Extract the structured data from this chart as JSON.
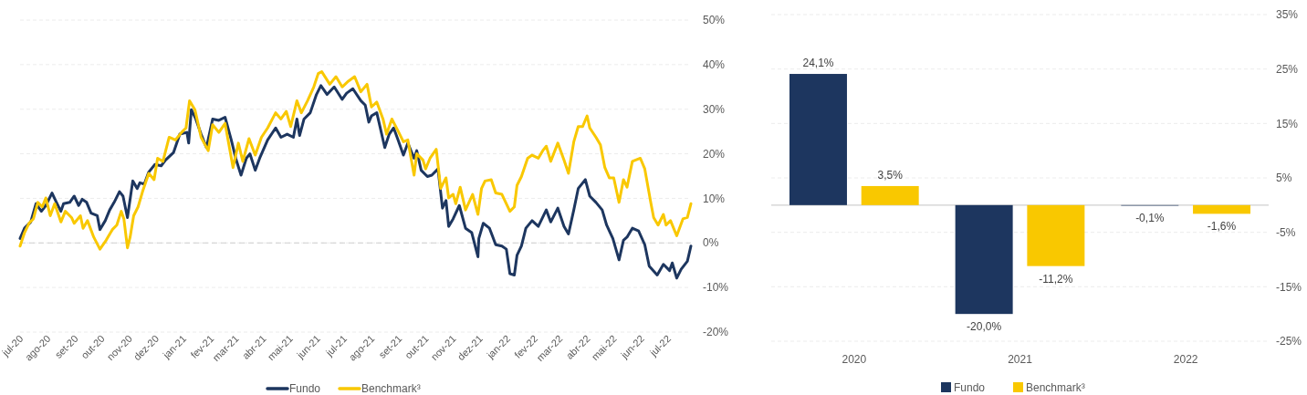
{
  "chart_data": [
    {
      "type": "line",
      "xlim": [
        "2020-07-01",
        "2022-07-27"
      ],
      "xticks": [
        {
          "value": "2020-07-01",
          "label": "jul-20"
        },
        {
          "value": "2020-08-01",
          "label": "ago-20"
        },
        {
          "value": "2020-09-01",
          "label": "set-20"
        },
        {
          "value": "2020-10-01",
          "label": "out-20"
        },
        {
          "value": "2020-11-01",
          "label": "nov-20"
        },
        {
          "value": "2020-12-01",
          "label": "dez-20"
        },
        {
          "value": "2021-01-01",
          "label": "jan-21"
        },
        {
          "value": "2021-02-01",
          "label": "fev-21"
        },
        {
          "value": "2021-03-01",
          "label": "mar-21"
        },
        {
          "value": "2021-04-01",
          "label": "abr-21"
        },
        {
          "value": "2021-05-01",
          "label": "mai-21"
        },
        {
          "value": "2021-06-01",
          "label": "jun-21"
        },
        {
          "value": "2021-07-01",
          "label": "jul-21"
        },
        {
          "value": "2021-08-01",
          "label": "ago-21"
        },
        {
          "value": "2021-09-01",
          "label": "set-21"
        },
        {
          "value": "2021-10-01",
          "label": "out-21"
        },
        {
          "value": "2021-11-01",
          "label": "nov-21"
        },
        {
          "value": "2021-12-01",
          "label": "dez-21"
        },
        {
          "value": "2022-01-01",
          "label": "jan-22"
        },
        {
          "value": "2022-02-01",
          "label": "fev-22"
        },
        {
          "value": "2022-03-01",
          "label": "mar-22"
        },
        {
          "value": "2022-04-01",
          "label": "abr-22"
        },
        {
          "value": "2022-05-01",
          "label": "mai-22"
        },
        {
          "value": "2022-06-01",
          "label": "jun-22"
        },
        {
          "value": "2022-07-01",
          "label": "jul-22"
        }
      ],
      "ylim": [
        -20,
        50
      ],
      "yticks": [
        {
          "value": -20,
          "label": "-20%"
        },
        {
          "value": -10,
          "label": "-10%"
        },
        {
          "value": 0,
          "label": "0%"
        },
        {
          "value": 10,
          "label": "10%"
        },
        {
          "value": 20,
          "label": "20%"
        },
        {
          "value": 30,
          "label": "30%"
        },
        {
          "value": 40,
          "label": "40%"
        },
        {
          "value": 50,
          "label": "50%"
        }
      ],
      "grid": "y",
      "legend": "bottom",
      "line_style": "solid",
      "ref_lines": [
        {
          "axis": "y",
          "value": 0,
          "color": "#cfcfcf",
          "line_style": "dashed"
        }
      ],
      "series": [
        {
          "name": "Fundo",
          "color": "#1d365f",
          "x": [
            "2020-07-01",
            "2020-07-06",
            "2020-07-13",
            "2020-07-19",
            "2020-07-25",
            "2020-07-30",
            "2020-08-06",
            "2020-08-11",
            "2020-08-16",
            "2020-08-19",
            "2020-08-26",
            "2020-08-31",
            "2020-09-05",
            "2020-09-09",
            "2020-09-14",
            "2020-09-19",
            "2020-09-26",
            "2020-09-29",
            "2020-10-05",
            "2020-10-10",
            "2020-10-15",
            "2020-10-21",
            "2020-10-25",
            "2020-10-30",
            "2020-11-05",
            "2020-11-10",
            "2020-11-13",
            "2020-11-18",
            "2020-11-23",
            "2020-11-30",
            "2020-12-07",
            "2020-12-12",
            "2020-12-21",
            "2020-12-28",
            "2021-01-05",
            "2021-01-07",
            "2021-01-10",
            "2021-01-15",
            "2021-01-21",
            "2021-01-27",
            "2021-02-03",
            "2021-02-10",
            "2021-02-17",
            "2021-02-24",
            "2021-03-01",
            "2021-03-07",
            "2021-03-13",
            "2021-03-17",
            "2021-03-23",
            "2021-03-28",
            "2021-04-06",
            "2021-04-15",
            "2021-04-21",
            "2021-04-28",
            "2021-05-05",
            "2021-05-09",
            "2021-05-12",
            "2021-05-17",
            "2021-05-24",
            "2021-05-31",
            "2021-06-05",
            "2021-06-12",
            "2021-06-20",
            "2021-06-29",
            "2021-07-04",
            "2021-07-11",
            "2021-07-20",
            "2021-07-25",
            "2021-07-29",
            "2021-08-01",
            "2021-08-07",
            "2021-08-16",
            "2021-08-21",
            "2021-08-26",
            "2021-08-31",
            "2021-09-06",
            "2021-09-11",
            "2021-09-18",
            "2021-09-21",
            "2021-09-26",
            "2021-10-03",
            "2021-10-08",
            "2021-10-15",
            "2021-10-20",
            "2021-10-24",
            "2021-10-27",
            "2021-11-01",
            "2021-11-08",
            "2021-11-15",
            "2021-11-22",
            "2021-11-29",
            "2021-11-30",
            "2021-12-05",
            "2021-12-12",
            "2021-12-19",
            "2021-12-26",
            "2021-12-31",
            "2022-01-04",
            "2022-01-09",
            "2022-01-12",
            "2022-01-17",
            "2022-01-22",
            "2022-01-29",
            "2022-02-05",
            "2022-02-14",
            "2022-02-19",
            "2022-02-27",
            "2022-03-06",
            "2022-03-11",
            "2022-03-17",
            "2022-03-22",
            "2022-03-30",
            "2022-04-04",
            "2022-04-11",
            "2022-04-18",
            "2022-04-23",
            "2022-04-30",
            "2022-05-07",
            "2022-05-12",
            "2022-05-16",
            "2022-05-22",
            "2022-05-29",
            "2022-06-05",
            "2022-06-10",
            "2022-06-19",
            "2022-06-26",
            "2022-07-03",
            "2022-07-06",
            "2022-07-11",
            "2022-07-16",
            "2022-07-23",
            "2022-07-27"
          ],
          "values": [
            1.0,
            3.3,
            4.7,
            8.8,
            7.1,
            8.4,
            11.2,
            9.1,
            7.1,
            8.8,
            9.1,
            10.5,
            8.4,
            9.8,
            9.1,
            6.7,
            6.1,
            3.0,
            5.0,
            7.4,
            9.1,
            11.5,
            10.5,
            5.7,
            13.9,
            12.2,
            13.5,
            13.2,
            15.9,
            17.6,
            17.3,
            18.6,
            20.3,
            24.4,
            24.8,
            22.4,
            29.9,
            27.8,
            24.4,
            21.4,
            27.8,
            27.5,
            28.2,
            23.1,
            19.0,
            15.2,
            19.0,
            20.0,
            16.3,
            19.0,
            23.1,
            25.8,
            23.7,
            24.4,
            23.7,
            27.8,
            24.1,
            27.8,
            29.2,
            33.3,
            35.3,
            33.3,
            35.0,
            32.2,
            33.6,
            34.6,
            31.9,
            30.9,
            27.1,
            28.5,
            29.2,
            21.4,
            24.4,
            25.8,
            23.1,
            19.7,
            22.4,
            19.0,
            20.7,
            16.3,
            14.9,
            15.2,
            16.6,
            7.8,
            9.5,
            3.7,
            5.4,
            8.4,
            3.3,
            2.3,
            -3.1,
            1.0,
            4.4,
            3.3,
            -0.4,
            -0.7,
            -1.4,
            -6.9,
            -7.2,
            -2.8,
            -0.7,
            3.3,
            5.0,
            3.7,
            7.4,
            4.7,
            7.8,
            3.7,
            2.0,
            7.4,
            12.2,
            14.2,
            10.5,
            9.1,
            7.4,
            4.0,
            1.0,
            -3.8,
            0.6,
            1.3,
            3.3,
            2.7,
            -0.4,
            -5.2,
            -7.2,
            -4.8,
            -6.2,
            -4.5,
            -7.9,
            -5.9,
            -4.1,
            -0.7
          ]
        },
        {
          "name": "Benchmark³",
          "color": "#f9c800",
          "x": [
            "2020-07-01",
            "2020-07-06",
            "2020-07-11",
            "2020-07-16",
            "2020-07-21",
            "2020-07-26",
            "2020-07-30",
            "2020-08-04",
            "2020-08-09",
            "2020-08-16",
            "2020-08-21",
            "2020-08-28",
            "2020-08-31",
            "2020-09-07",
            "2020-09-10",
            "2020-09-15",
            "2020-09-22",
            "2020-09-29",
            "2020-10-06",
            "2020-10-13",
            "2020-10-18",
            "2020-10-23",
            "2020-10-26",
            "2020-10-30",
            "2020-11-02",
            "2020-11-06",
            "2020-11-11",
            "2020-11-16",
            "2020-11-23",
            "2020-11-29",
            "2020-12-03",
            "2020-12-09",
            "2020-12-16",
            "2020-12-23",
            "2020-12-30",
            "2021-01-04",
            "2021-01-08",
            "2021-01-14",
            "2021-01-21",
            "2021-01-29",
            "2021-02-03",
            "2021-02-10",
            "2021-02-17",
            "2021-02-26",
            "2021-03-04",
            "2021-03-09",
            "2021-03-16",
            "2021-03-23",
            "2021-03-30",
            "2021-04-06",
            "2021-04-15",
            "2021-04-21",
            "2021-04-27",
            "2021-05-02",
            "2021-05-09",
            "2021-05-14",
            "2021-05-21",
            "2021-05-28",
            "2021-06-02",
            "2021-06-06",
            "2021-06-15",
            "2021-06-22",
            "2021-06-29",
            "2021-07-06",
            "2021-07-13",
            "2021-07-20",
            "2021-07-27",
            "2021-08-01",
            "2021-08-07",
            "2021-08-14",
            "2021-08-18",
            "2021-08-24",
            "2021-08-31",
            "2021-09-06",
            "2021-09-11",
            "2021-09-18",
            "2021-09-21",
            "2021-09-28",
            "2021-10-01",
            "2021-10-06",
            "2021-10-13",
            "2021-10-18",
            "2021-10-24",
            "2021-10-27",
            "2021-11-01",
            "2021-11-04",
            "2021-11-09",
            "2021-11-15",
            "2021-11-23",
            "2021-11-29",
            "2021-12-03",
            "2021-12-07",
            "2021-12-14",
            "2021-12-19",
            "2021-12-26",
            "2022-01-04",
            "2022-01-09",
            "2022-01-12",
            "2022-01-17",
            "2022-01-24",
            "2022-01-29",
            "2022-02-05",
            "2022-02-10",
            "2022-02-14",
            "2022-02-19",
            "2022-02-27",
            "2022-03-06",
            "2022-03-11",
            "2022-03-17",
            "2022-03-22",
            "2022-03-27",
            "2022-04-01",
            "2022-04-04",
            "2022-04-11",
            "2022-04-16",
            "2022-04-21",
            "2022-04-26",
            "2022-05-01",
            "2022-05-07",
            "2022-05-12",
            "2022-05-16",
            "2022-05-22",
            "2022-05-31",
            "2022-06-05",
            "2022-06-12",
            "2022-06-15",
            "2022-06-20",
            "2022-06-26",
            "2022-06-29",
            "2022-07-04",
            "2022-07-11",
            "2022-07-18",
            "2022-07-23",
            "2022-07-27"
          ],
          "values": [
            -0.7,
            2.3,
            4.4,
            5.4,
            9.1,
            8.1,
            10.1,
            6.1,
            8.8,
            4.7,
            7.1,
            5.7,
            4.4,
            6.1,
            3.3,
            5.0,
            1.3,
            -1.4,
            0.6,
            3.0,
            4.0,
            7.1,
            5.4,
            -1.1,
            1.3,
            6.1,
            8.1,
            11.5,
            15.6,
            14.2,
            19.0,
            18.3,
            23.7,
            23.1,
            24.8,
            25.8,
            31.9,
            29.9,
            23.7,
            20.7,
            26.5,
            24.8,
            26.8,
            16.9,
            22.4,
            18.3,
            23.4,
            19.7,
            23.7,
            25.8,
            29.2,
            27.8,
            29.5,
            26.1,
            31.9,
            29.2,
            31.9,
            35.0,
            38.0,
            38.4,
            35.6,
            37.3,
            35.0,
            36.3,
            37.3,
            33.9,
            35.6,
            30.5,
            31.6,
            27.8,
            24.4,
            27.8,
            25.1,
            22.7,
            23.1,
            15.2,
            20.0,
            18.6,
            16.6,
            19.0,
            21.0,
            12.2,
            14.6,
            10.1,
            10.9,
            8.8,
            12.5,
            7.4,
            10.9,
            6.4,
            12.2,
            13.9,
            14.2,
            11.2,
            10.9,
            7.1,
            8.1,
            12.9,
            14.9,
            19.0,
            19.7,
            19.0,
            20.7,
            21.7,
            18.3,
            22.4,
            18.6,
            15.6,
            22.7,
            26.1,
            26.1,
            28.5,
            25.8,
            23.7,
            22.0,
            16.9,
            14.6,
            14.6,
            9.1,
            14.2,
            12.5,
            18.3,
            19.0,
            16.6,
            8.8,
            5.7,
            4.0,
            6.4,
            4.0,
            5.0,
            1.6,
            5.4,
            5.7,
            8.8
          ]
        }
      ]
    },
    {
      "type": "bar",
      "categories": [
        "2020",
        "2021",
        "2022"
      ],
      "ylim": [
        -25,
        35
      ],
      "yticks": [
        {
          "value": -25,
          "label": "-25%"
        },
        {
          "value": -15,
          "label": "-15%"
        },
        {
          "value": -5,
          "label": "-5%"
        },
        {
          "value": 5,
          "label": "5%"
        },
        {
          "value": 15,
          "label": "15%"
        },
        {
          "value": 25,
          "label": "25%"
        },
        {
          "value": 35,
          "label": "35%"
        }
      ],
      "grid": "y",
      "legend": "bottom",
      "series": [
        {
          "name": "Fundo",
          "color": "#1d365f",
          "values": [
            24.1,
            -20.0,
            -0.1
          ],
          "value_labels": [
            "24,1%",
            "-20,0%",
            "-0,1%"
          ]
        },
        {
          "name": "Benchmark³",
          "color": "#f9c800",
          "values": [
            3.5,
            -11.2,
            -1.6
          ],
          "value_labels": [
            "3,5%",
            "-11,2%",
            "-1,6%"
          ]
        }
      ]
    }
  ]
}
